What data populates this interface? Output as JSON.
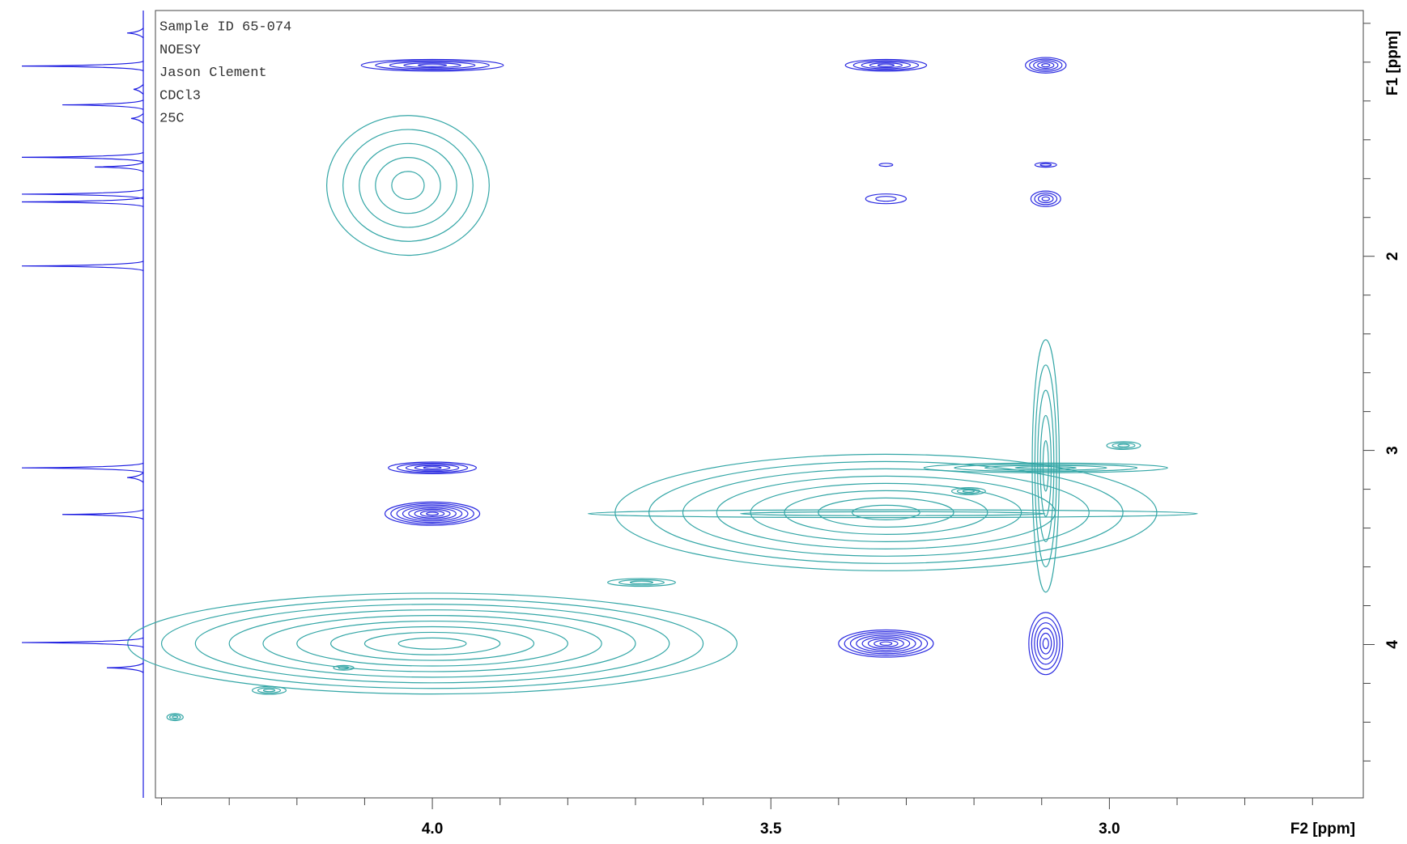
{
  "chart_data": {
    "type": "contour",
    "annotations": [
      "Sample ID 65-074",
      "NOESY",
      "Jason Clement",
      "CDCl3",
      "25C"
    ],
    "x_label": "F2 [ppm]",
    "y_label": "F1 [ppm]",
    "xlim": [
      4.409,
      2.625
    ],
    "ylim": [
      0.734,
      4.79
    ],
    "xticks": [
      {
        "value": 4.0,
        "label": "4.0"
      },
      {
        "value": 3.5,
        "label": "3.5"
      },
      {
        "value": 3.0,
        "label": "3.0"
      }
    ],
    "xminorticks": [
      4.4,
      4.3,
      4.2,
      4.1,
      3.9,
      3.8,
      3.7,
      3.6,
      3.4,
      3.3,
      3.2,
      3.1,
      2.9,
      2.8,
      2.7
    ],
    "yticks": [
      2,
      3,
      4
    ],
    "yminorticks": [
      0.8,
      1.0,
      1.2,
      1.4,
      1.6,
      1.8,
      2.2,
      2.4,
      2.6,
      2.8,
      3.2,
      3.4,
      3.6,
      3.8,
      4.2,
      4.4,
      4.6
    ],
    "peaks": [
      {
        "x": 4.0,
        "y": 1.016,
        "rx": 0.105,
        "ry": 0.03,
        "levels": 5,
        "color": "#2a2ae0"
      },
      {
        "x": 3.33,
        "y": 1.016,
        "rx": 0.06,
        "ry": 0.03,
        "levels": 5,
        "color": "#2a2ae0"
      },
      {
        "x": 3.094,
        "y": 1.016,
        "rx": 0.03,
        "ry": 0.04,
        "levels": 5,
        "color": "#2a2ae0"
      },
      {
        "x": 3.33,
        "y": 1.529,
        "rx": 0.01,
        "ry": 0.008,
        "levels": 1,
        "color": "#2a2ae0"
      },
      {
        "x": 3.094,
        "y": 1.529,
        "rx": 0.016,
        "ry": 0.012,
        "levels": 2,
        "color": "#2a2ae0"
      },
      {
        "x": 3.33,
        "y": 1.704,
        "rx": 0.03,
        "ry": 0.025,
        "levels": 2,
        "color": "#2a2ae0"
      },
      {
        "x": 3.094,
        "y": 1.704,
        "rx": 0.022,
        "ry": 0.04,
        "levels": 4,
        "color": "#2a2ae0"
      },
      {
        "x": 4.0,
        "y": 3.09,
        "rx": 0.065,
        "ry": 0.03,
        "levels": 5,
        "color": "#2a2ae0"
      },
      {
        "x": 4.0,
        "y": 3.326,
        "rx": 0.07,
        "ry": 0.06,
        "levels": 8,
        "color": "#2a2ae0"
      },
      {
        "x": 3.33,
        "y": 3.995,
        "rx": 0.07,
        "ry": 0.07,
        "levels": 8,
        "color": "#2a2ae0"
      },
      {
        "x": 3.094,
        "y": 3.995,
        "rx": 0.025,
        "ry": 0.16,
        "levels": 6,
        "color": "#2a2ae0"
      },
      {
        "x": 4.036,
        "y": 1.635,
        "rx": 0.12,
        "ry": 0.36,
        "levels": 5,
        "color": "#33a6a6"
      },
      {
        "x": 4.0,
        "y": 3.995,
        "rx": 0.45,
        "ry": 0.26,
        "levels": 9,
        "color": "#33a6a6"
      },
      {
        "x": 3.33,
        "y": 3.32,
        "rx": 0.4,
        "ry": 0.3,
        "levels": 8,
        "color": "#33a6a6"
      },
      {
        "x": 3.32,
        "y": 3.326,
        "rx": 0.45,
        "ry": 0.02,
        "levels": 2,
        "color": "#33a6a6"
      },
      {
        "x": 3.094,
        "y": 3.08,
        "rx": 0.02,
        "ry": 0.65,
        "levels": 5,
        "color": "#33a6a6"
      },
      {
        "x": 3.094,
        "y": 3.09,
        "rx": 0.18,
        "ry": 0.025,
        "levels": 4,
        "color": "#33a6a6"
      },
      {
        "x": 3.691,
        "y": 3.68,
        "rx": 0.05,
        "ry": 0.02,
        "levels": 3,
        "color": "#33a6a6"
      },
      {
        "x": 4.38,
        "y": 4.374,
        "rx": 0.012,
        "ry": 0.018,
        "levels": 3,
        "color": "#33a6a6"
      },
      {
        "x": 4.241,
        "y": 4.236,
        "rx": 0.025,
        "ry": 0.02,
        "levels": 3,
        "color": "#33a6a6"
      },
      {
        "x": 2.979,
        "y": 2.975,
        "rx": 0.025,
        "ry": 0.02,
        "levels": 3,
        "color": "#33a6a6"
      },
      {
        "x": 3.208,
        "y": 3.21,
        "rx": 0.025,
        "ry": 0.018,
        "levels": 3,
        "color": "#33a6a6"
      },
      {
        "x": 4.131,
        "y": 4.12,
        "rx": 0.015,
        "ry": 0.012,
        "levels": 2,
        "color": "#33a6a6"
      }
    ],
    "projection": {
      "color": "#1a1ae0",
      "y": [
        0.85,
        1.02,
        1.14,
        1.22,
        1.29,
        1.49,
        1.54,
        1.68,
        1.72,
        2.05,
        3.09,
        3.14,
        3.33,
        3.99,
        4.12
      ],
      "values": [
        20,
        150,
        12,
        100,
        15,
        150,
        60,
        150,
        150,
        150,
        150,
        20,
        100,
        150,
        45
      ]
    }
  }
}
